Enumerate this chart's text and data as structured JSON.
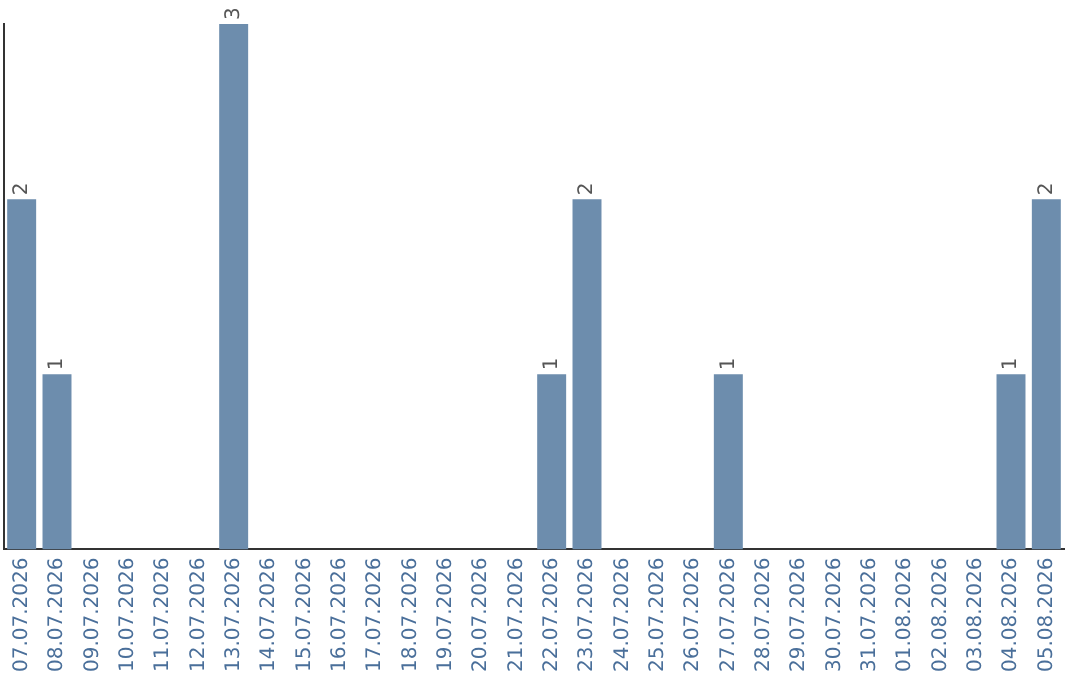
{
  "chart_data": {
    "type": "bar",
    "categories": [
      "07.07.2026",
      "08.07.2026",
      "09.07.2026",
      "10.07.2026",
      "11.07.2026",
      "12.07.2026",
      "13.07.2026",
      "14.07.2026",
      "15.07.2026",
      "16.07.2026",
      "17.07.2026",
      "18.07.2026",
      "19.07.2026",
      "20.07.2026",
      "21.07.2026",
      "22.07.2026",
      "23.07.2026",
      "24.07.2026",
      "25.07.2026",
      "26.07.2026",
      "27.07.2026",
      "28.07.2026",
      "29.07.2026",
      "30.07.2026",
      "31.07.2026",
      "01.08.2026",
      "02.08.2026",
      "03.08.2026",
      "04.08.2026",
      "05.08.2026"
    ],
    "values": [
      2,
      1,
      0,
      0,
      0,
      0,
      3,
      0,
      0,
      0,
      0,
      0,
      0,
      0,
      0,
      1,
      2,
      0,
      0,
      0,
      1,
      0,
      0,
      0,
      0,
      0,
      0,
      0,
      1,
      2
    ],
    "value_labels": [
      "2",
      "1",
      null,
      null,
      null,
      null,
      "3",
      null,
      null,
      null,
      null,
      null,
      null,
      null,
      null,
      "1",
      "2",
      null,
      null,
      null,
      "1",
      null,
      null,
      null,
      null,
      null,
      null,
      null,
      "1",
      "2"
    ],
    "color": "#6d8dad",
    "ylim": [
      0,
      3
    ],
    "tick_labels": "x",
    "grid": false,
    "legend": false
  }
}
